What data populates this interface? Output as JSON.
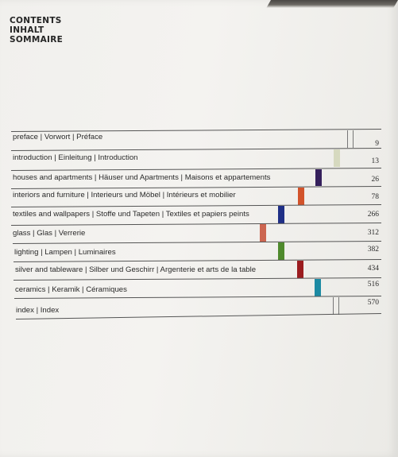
{
  "heading": [
    "CONTENTS",
    "INHALT",
    "SOMMAIRE"
  ],
  "toc": [
    {
      "label": "preface | Vorwort | Préface",
      "page": "9",
      "marker": "outline"
    },
    {
      "label": "introduction | Einleitung | Introduction",
      "page": "13",
      "marker": "#d6d9bf"
    },
    {
      "label": "houses and apartments | Häuser und Apartments | Maisons et appartements",
      "page": "26",
      "marker": "#35205c"
    },
    {
      "label": "interiors and furniture | Interieurs und Möbel | Intérieurs et mobilier",
      "page": "78",
      "marker": "#d2532b"
    },
    {
      "label": "textiles and wallpapers | Stoffe und Tapeten | Textiles et papiers peints",
      "page": "266",
      "marker": "#1f2f86"
    },
    {
      "label": "glass | Glas | Verrerie",
      "page": "312",
      "marker": "#cc6650"
    },
    {
      "label": "lighting | Lampen | Luminaires",
      "page": "382",
      "marker": "#4f8a2d"
    },
    {
      "label": "silver and tableware | Silber und Geschirr | Argenterie et arts de la table",
      "page": "434",
      "marker": "#9b1c1f"
    },
    {
      "label": "ceramics | Keramik | Céramiques",
      "page": "516",
      "marker": "#1c8aa3"
    },
    {
      "label": "index | Index",
      "page": "570",
      "marker": "outline"
    }
  ]
}
